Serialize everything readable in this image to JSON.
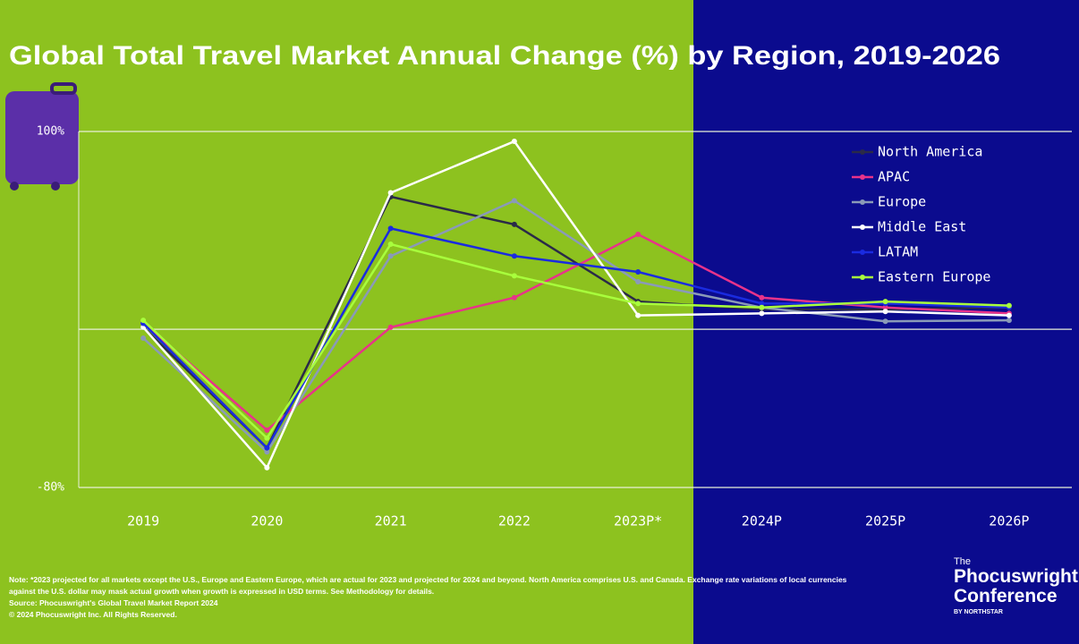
{
  "chart_data": {
    "type": "line",
    "title": "Global Total Travel Market Annual Change (%) by Region, 2019-2026",
    "categories": [
      "2019",
      "2020",
      "2021",
      "2022",
      "2023P*",
      "2024P",
      "2025P",
      "2026P"
    ],
    "series": [
      {
        "name": "North America",
        "color": "#2a2a48",
        "values": [
          1,
          -60,
          67,
          53,
          14,
          10,
          10,
          11
        ]
      },
      {
        "name": "APAC",
        "color": "#e8338a",
        "values": [
          3,
          -51,
          1,
          16,
          48,
          16,
          11,
          8
        ]
      },
      {
        "name": "Europe",
        "color": "#8a9ab8",
        "values": [
          -4.5,
          -62,
          37,
          65,
          24,
          11,
          4,
          4.5
        ]
      },
      {
        "name": "Middle East",
        "color": "#ffffff",
        "values": [
          1,
          -70,
          69,
          95,
          7,
          8,
          9,
          7
        ]
      },
      {
        "name": "LATAM",
        "color": "#1a2be0",
        "values": [
          3,
          -60,
          51,
          37,
          29,
          13,
          13,
          11
        ]
      },
      {
        "name": "Eastern Europe",
        "color": "#a8ff3c",
        "values": [
          4.5,
          -55,
          43,
          27,
          13,
          11,
          14,
          12
        ]
      }
    ],
    "ylim": [
      -80,
      100
    ],
    "yticks": [
      {
        "value": 100,
        "label": "100%"
      },
      {
        "value": -80,
        "label": "-80%"
      }
    ],
    "grid": true,
    "legend": "upper right"
  },
  "footer": {
    "notes": [
      "Note: *2023 projected for all markets except the U.S., Europe and Eastern Europe, which are actual for 2023 and projected for 2024 and beyond. North America comprises U.S. and Canada. Exchange rate variations of local currencies against the U.S. dollar may mask actual growth when growth is expressed in USD terms. See Methodology for details.",
      "Source: Phocuswright's Global Travel Market Report 2024",
      "© 2024 Phocuswright Inc. All Rights Reserved."
    ],
    "logo": [
      "The",
      "Phocuswright",
      "Conference",
      "BY NORTHSTAR"
    ]
  }
}
